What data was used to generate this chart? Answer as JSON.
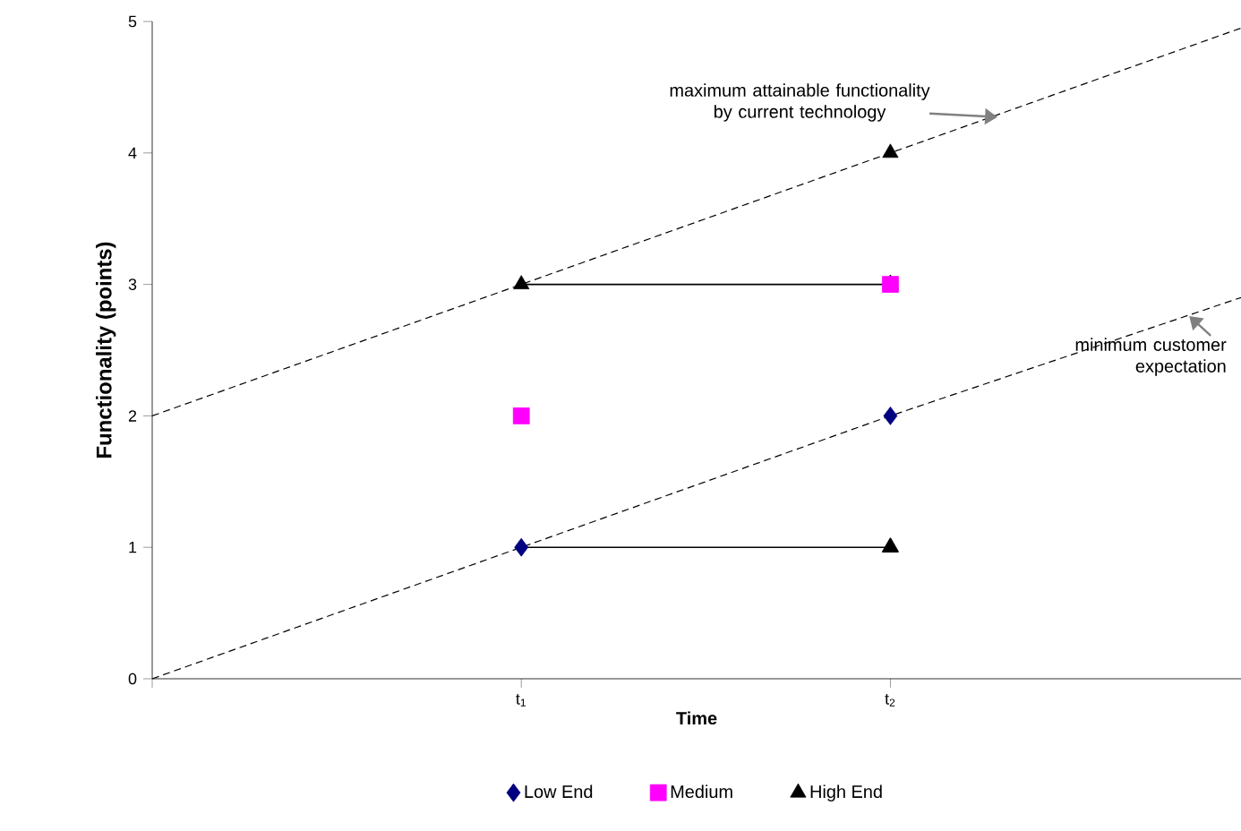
{
  "chart_data": {
    "type": "scatter",
    "xlabel": "Time",
    "ylabel": "Functionality (points)",
    "xlim": [
      0,
      2.95
    ],
    "ylim": [
      0,
      5
    ],
    "xticks": [
      {
        "value": 0,
        "label": null
      },
      {
        "value": 1,
        "label": "t$_{1}$"
      },
      {
        "value": 2,
        "label": "t$_{2}$"
      }
    ],
    "yticks": [
      0,
      1,
      2,
      3,
      4,
      5
    ],
    "legend": "bottom",
    "series": [
      {
        "type": "line",
        "color": "#000000",
        "line_style": "dashed",
        "x": [
          0,
          1,
          2,
          2.95
        ],
        "values": [
          2,
          3,
          4,
          4.95
        ]
      },
      {
        "type": "line",
        "color": "#000000",
        "line_style": "dashed",
        "x": [
          0,
          1,
          2,
          2.95
        ],
        "values": [
          0,
          1,
          2,
          2.9
        ]
      },
      {
        "type": "line",
        "color": "#000000",
        "line_style": "solid",
        "marker": "triangle",
        "x": [
          1,
          2
        ],
        "values": [
          3,
          3
        ]
      },
      {
        "type": "line",
        "color": "#000000",
        "line_style": "solid",
        "marker": "triangle",
        "x": [
          1,
          2
        ],
        "values": [
          1,
          1
        ]
      },
      {
        "name": "Low End",
        "type": "scatter",
        "marker": "diamond",
        "color": "#000080",
        "x": [
          1,
          2
        ],
        "values": [
          1,
          2
        ]
      },
      {
        "name": "Medium",
        "marker": "square",
        "color": "#ff00ff",
        "x": [
          1,
          2
        ],
        "values": [
          2,
          3
        ]
      },
      {
        "name": "High End",
        "type": "scatter",
        "marker": "triangle",
        "color": "#000000",
        "x": [
          1,
          2
        ],
        "values": [
          3,
          4
        ]
      }
    ],
    "annotations": [
      {
        "text": "maximum attainable functionality by current technology",
        "x": 2.3,
        "y": 4.3
      },
      {
        "text": "minimum customer expectation",
        "x": 2.8,
        "y": 2.8
      }
    ]
  }
}
